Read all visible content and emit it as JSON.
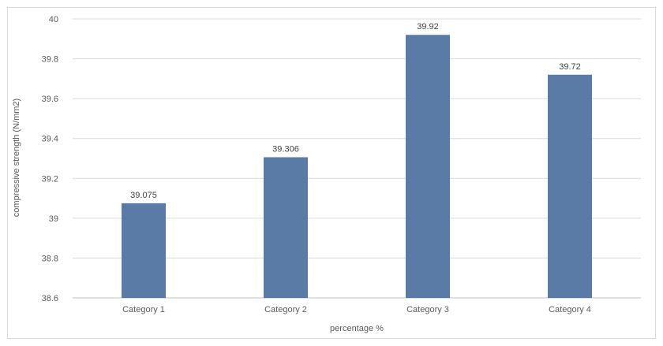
{
  "chart_data": {
    "type": "bar",
    "title": "",
    "xlabel": "percentage %",
    "ylabel": "compressive strength (N/mm2)",
    "categories": [
      "Category 1",
      "Category 2",
      "Category 3",
      "Category 4"
    ],
    "series": [
      {
        "values": [
          39.075,
          39.306,
          39.92,
          39.72
        ],
        "data_labels": [
          "39.075",
          "39.306",
          "39.92",
          "39.72"
        ],
        "color": "#5b7ba7"
      }
    ],
    "ylim": [
      38.6,
      40
    ],
    "yticks": [
      38.6,
      38.8,
      39,
      39.2,
      39.4,
      39.6,
      39.8,
      40
    ],
    "ytick_labels": [
      "38.6",
      "38.8",
      "39",
      "39.2",
      "39.4",
      "39.6",
      "39.8",
      "40"
    ],
    "grid": true,
    "legend": "none",
    "colors": {
      "grid": "#d9d9d9",
      "axis": "#bfbfbf",
      "frame": "#d9d9d9"
    }
  }
}
